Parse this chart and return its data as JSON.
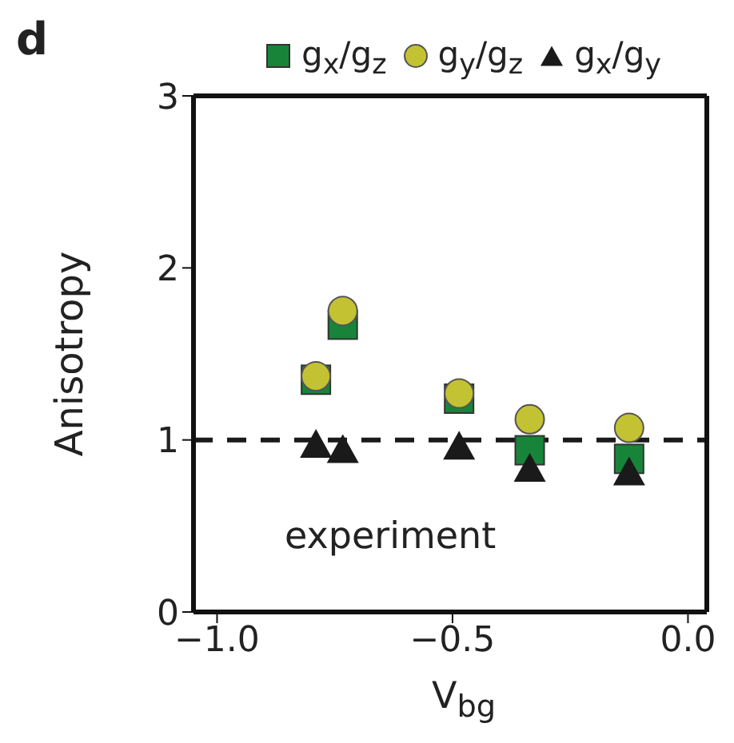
{
  "chart_data": {
    "type": "scatter",
    "title": "d",
    "xlabel": "V$_{bg}$",
    "ylabel": "Anisotropy",
    "annotations": [
      "experiment"
    ],
    "x": [
      -0.79,
      -0.733,
      -0.486,
      -0.336,
      -0.125
    ],
    "series": [
      {
        "name": "g$_{x}$/g$_{z}$",
        "color": "#17843a",
        "marker": "square",
        "values": [
          1.35,
          1.67,
          1.24,
          0.94,
          0.89
        ]
      },
      {
        "name": "g$_{y}$/g$_{z}$",
        "color": "#c3c232",
        "marker": "circle",
        "values": [
          1.37,
          1.75,
          1.27,
          1.12,
          1.07
        ]
      },
      {
        "name": "g$_{x}$/g$_{y}$",
        "color": "#1a1a1a",
        "marker": "triangle",
        "values": [
          0.98,
          0.95,
          0.97,
          0.84,
          0.82
        ]
      }
    ],
    "xlim": [
      -1.05,
      0.04
    ],
    "xticks": [
      {
        "value": -1,
        "label": "−1.0"
      },
      {
        "value": -0.5,
        "label": "−0.5"
      },
      {
        "value": 0,
        "label": "0.0"
      }
    ],
    "ylim": [
      0,
      3
    ],
    "yticks": [
      0,
      1,
      2,
      3
    ],
    "ref_lines": [
      {
        "axis": "y",
        "value": 1,
        "line_style": "dashed",
        "color": "#1a1a1a"
      }
    ],
    "legend": "top"
  }
}
